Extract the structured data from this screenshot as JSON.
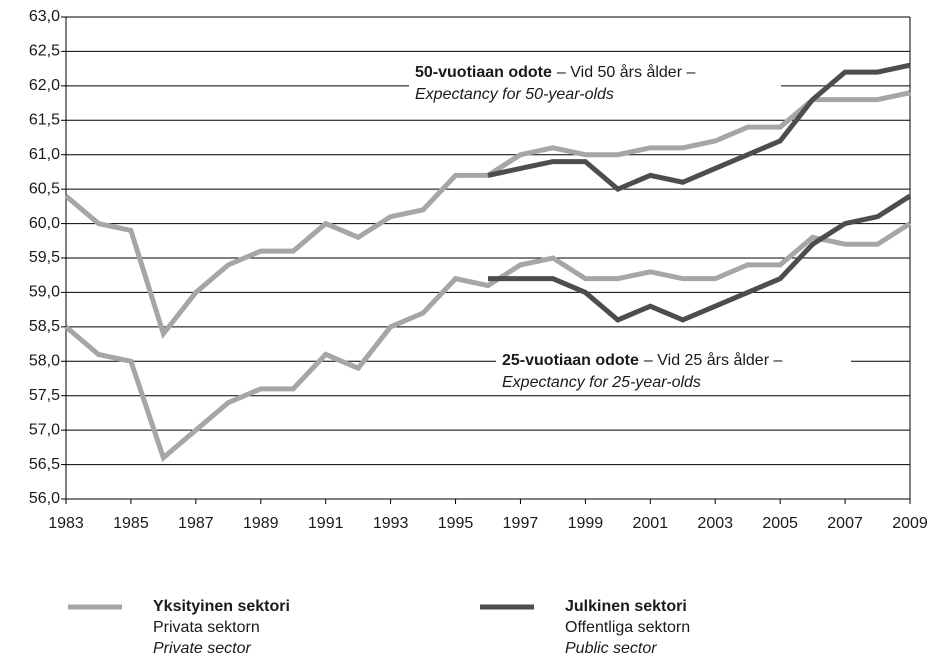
{
  "chart_data": {
    "type": "line",
    "x": [
      1983,
      1984,
      1985,
      1986,
      1987,
      1988,
      1989,
      1990,
      1991,
      1992,
      1993,
      1994,
      1995,
      1996,
      1997,
      1998,
      1999,
      2000,
      2001,
      2002,
      2003,
      2004,
      2005,
      2006,
      2007,
      2008,
      2009
    ],
    "xlim": [
      1983,
      2009
    ],
    "xticks": [
      1983,
      1985,
      1987,
      1989,
      1991,
      1993,
      1995,
      1997,
      1999,
      2001,
      2003,
      2005,
      2007,
      2009
    ],
    "ylim": [
      56,
      63
    ],
    "yticks": [
      {
        "value": 56,
        "label": "56,0"
      },
      {
        "value": 56.5,
        "label": "56,5"
      },
      {
        "value": 57,
        "label": "57,0"
      },
      {
        "value": 57.5,
        "label": "57,5"
      },
      {
        "value": 58,
        "label": "58,0"
      },
      {
        "value": 58.5,
        "label": "58,5"
      },
      {
        "value": 59,
        "label": "59,0"
      },
      {
        "value": 59.5,
        "label": "59,5"
      },
      {
        "value": 60,
        "label": "60,0"
      },
      {
        "value": 60.5,
        "label": "60,5"
      },
      {
        "value": 61,
        "label": "61,0"
      },
      {
        "value": 61.5,
        "label": "61,5"
      },
      {
        "value": 62,
        "label": "62,0"
      },
      {
        "value": 62.5,
        "label": "62,5"
      },
      {
        "value": 63,
        "label": "63,0"
      }
    ],
    "grid": true,
    "series": [
      {
        "color": "#a6a6a6",
        "values": [
          60.4,
          60.0,
          59.9,
          58.4,
          59.0,
          59.4,
          59.6,
          59.6,
          60.0,
          59.8,
          60.1,
          60.2,
          60.7,
          60.7,
          61.0,
          61.1,
          61.0,
          61.0,
          61.1,
          61.1,
          61.2,
          61.4,
          61.4,
          61.8,
          61.8,
          61.8,
          61.9
        ]
      },
      {
        "color": "#4d4d4d",
        "values": [
          null,
          null,
          null,
          null,
          null,
          null,
          null,
          null,
          null,
          null,
          null,
          null,
          null,
          60.7,
          60.8,
          60.9,
          60.9,
          60.5,
          60.7,
          60.6,
          60.8,
          61.0,
          61.2,
          61.8,
          62.2,
          62.2,
          62.3
        ]
      },
      {
        "color": "#a6a6a6",
        "values": [
          58.5,
          58.1,
          58.0,
          56.6,
          57.0,
          57.4,
          57.6,
          57.6,
          58.1,
          57.9,
          58.5,
          58.7,
          59.2,
          59.1,
          59.4,
          59.5,
          59.2,
          59.2,
          59.3,
          59.2,
          59.2,
          59.4,
          59.4,
          59.8,
          59.7,
          59.7,
          60.0
        ]
      },
      {
        "color": "#4d4d4d",
        "values": [
          null,
          null,
          null,
          null,
          null,
          null,
          null,
          null,
          null,
          null,
          null,
          null,
          null,
          59.2,
          59.2,
          59.2,
          59.0,
          58.6,
          58.8,
          58.6,
          58.8,
          59.0,
          59.2,
          59.7,
          60.0,
          60.1,
          60.4
        ]
      }
    ],
    "annotations": [
      {
        "bold": "50-vuotiaan odote",
        "text": "– Vid 50 års ålder –",
        "italic": "Expectancy for 50-year-olds"
      },
      {
        "bold": "25-vuotiaan odote",
        "text": "– Vid 25 års ålder –",
        "italic": "Expectancy for 25-year-olds"
      }
    ],
    "legend": [
      {
        "name": "Yksityinen sektori",
        "lines": [
          "Privata sektorn",
          "Private sector"
        ],
        "color": "#a6a6a6"
      },
      {
        "name": "Julkinen sektori",
        "lines": [
          "Offentliga sektorn",
          "Public sector"
        ],
        "color": "#4d4d4d"
      }
    ]
  }
}
